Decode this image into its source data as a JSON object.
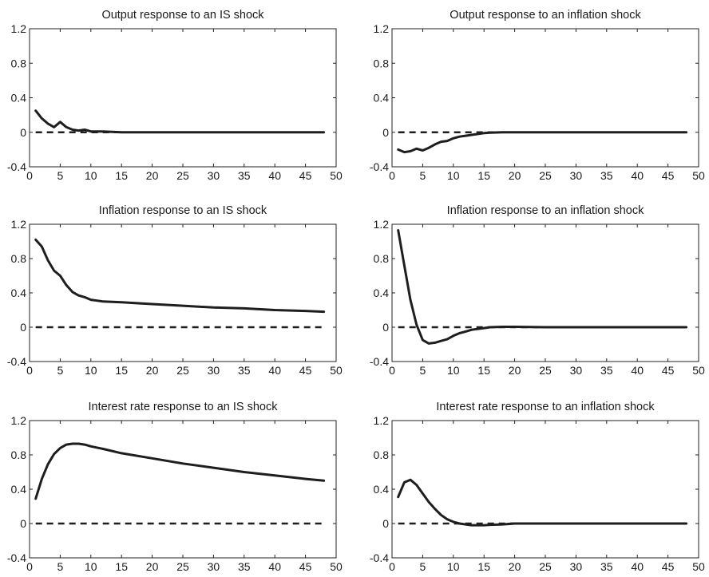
{
  "chart_data": [
    {
      "type": "line",
      "title": "Output response to an IS shock",
      "xlim": [
        0,
        50
      ],
      "ylim": [
        -0.4,
        1.2
      ],
      "xticks": [
        0,
        5,
        10,
        15,
        20,
        25,
        30,
        35,
        40,
        45,
        50
      ],
      "yticks": [
        -0.4,
        0,
        0.4,
        0.8,
        1.2
      ],
      "ytick_labels": [
        "-0.4",
        "0",
        "0.4",
        "0.8",
        "1.2"
      ],
      "x": [
        1,
        2,
        3,
        4,
        5,
        6,
        7,
        8,
        9,
        10,
        12,
        15,
        20,
        30,
        40,
        48
      ],
      "series": [
        {
          "values": [
            0.25,
            0.16,
            0.1,
            0.06,
            0.12,
            0.06,
            0.03,
            0.02,
            0.03,
            0.01,
            0.01,
            0.0,
            0.0,
            0.0,
            0.0,
            0.0
          ]
        }
      ],
      "zero_line": true
    },
    {
      "type": "line",
      "title": "Output response to an inflation shock",
      "xlim": [
        0,
        50
      ],
      "ylim": [
        -0.4,
        1.2
      ],
      "xticks": [
        0,
        5,
        10,
        15,
        20,
        25,
        30,
        35,
        40,
        45,
        50
      ],
      "yticks": [
        -0.4,
        0,
        0.4,
        0.8,
        1.2
      ],
      "ytick_labels": [
        "-0.4",
        "0",
        "0.4",
        "0.8",
        "1.2"
      ],
      "x": [
        1,
        2,
        3,
        4,
        5,
        6,
        7,
        8,
        9,
        10,
        11,
        12,
        13,
        14,
        15,
        16,
        18,
        20,
        25,
        30,
        40,
        48
      ],
      "series": [
        {
          "values": [
            -0.2,
            -0.23,
            -0.22,
            -0.19,
            -0.21,
            -0.18,
            -0.14,
            -0.11,
            -0.1,
            -0.07,
            -0.05,
            -0.04,
            -0.03,
            -0.02,
            -0.01,
            -0.005,
            0.0,
            0.0,
            0.0,
            0.0,
            0.0,
            0.0
          ]
        }
      ],
      "zero_line": true
    },
    {
      "type": "line",
      "title": "Inflation response to an IS shock",
      "xlim": [
        0,
        50
      ],
      "ylim": [
        -0.4,
        1.2
      ],
      "xticks": [
        0,
        5,
        10,
        15,
        20,
        25,
        30,
        35,
        40,
        45,
        50
      ],
      "yticks": [
        -0.4,
        0,
        0.4,
        0.8,
        1.2
      ],
      "ytick_labels": [
        "-0.4",
        "0",
        "0.4",
        "0.8",
        "1.2"
      ],
      "x": [
        1,
        2,
        3,
        4,
        5,
        6,
        7,
        8,
        9,
        10,
        11,
        12,
        15,
        20,
        25,
        30,
        35,
        40,
        45,
        48
      ],
      "series": [
        {
          "values": [
            1.02,
            0.94,
            0.78,
            0.66,
            0.6,
            0.49,
            0.41,
            0.37,
            0.35,
            0.32,
            0.31,
            0.3,
            0.29,
            0.27,
            0.25,
            0.23,
            0.22,
            0.2,
            0.19,
            0.18
          ]
        }
      ],
      "zero_line": true
    },
    {
      "type": "line",
      "title": "Inflation response to an inflation shock",
      "xlim": [
        0,
        50
      ],
      "ylim": [
        -0.4,
        1.2
      ],
      "xticks": [
        0,
        5,
        10,
        15,
        20,
        25,
        30,
        35,
        40,
        45,
        50
      ],
      "yticks": [
        -0.4,
        0,
        0.4,
        0.8,
        1.2
      ],
      "ytick_labels": [
        "-0.4",
        "0",
        "0.4",
        "0.8",
        "1.2"
      ],
      "x": [
        1,
        2,
        3,
        4,
        5,
        6,
        7,
        8,
        9,
        10,
        11,
        12,
        13,
        14,
        15,
        16,
        18,
        20,
        25,
        30,
        40,
        48
      ],
      "series": [
        {
          "values": [
            1.13,
            0.72,
            0.32,
            0.03,
            -0.15,
            -0.19,
            -0.18,
            -0.16,
            -0.14,
            -0.1,
            -0.07,
            -0.05,
            -0.03,
            -0.02,
            -0.01,
            0.0,
            0.005,
            0.005,
            0.0,
            0.0,
            0.0,
            0.0
          ]
        }
      ],
      "zero_line": true
    },
    {
      "type": "line",
      "title": "Interest rate response to an IS shock",
      "xlim": [
        0,
        50
      ],
      "ylim": [
        -0.4,
        1.2
      ],
      "xticks": [
        0,
        5,
        10,
        15,
        20,
        25,
        30,
        35,
        40,
        45,
        50
      ],
      "yticks": [
        -0.4,
        0,
        0.4,
        0.8,
        1.2
      ],
      "ytick_labels": [
        "-0.4",
        "0",
        "0.4",
        "0.8",
        "1.2"
      ],
      "x": [
        1,
        2,
        3,
        4,
        5,
        6,
        7,
        8,
        9,
        10,
        12,
        15,
        20,
        25,
        30,
        35,
        40,
        45,
        48
      ],
      "series": [
        {
          "values": [
            0.29,
            0.52,
            0.69,
            0.81,
            0.88,
            0.92,
            0.93,
            0.93,
            0.92,
            0.9,
            0.87,
            0.82,
            0.76,
            0.7,
            0.65,
            0.6,
            0.56,
            0.52,
            0.5
          ]
        }
      ],
      "zero_line": true
    },
    {
      "type": "line",
      "title": "Interest rate response to an inflation shock",
      "xlim": [
        0,
        50
      ],
      "ylim": [
        -0.4,
        1.2
      ],
      "xticks": [
        0,
        5,
        10,
        15,
        20,
        25,
        30,
        35,
        40,
        45,
        50
      ],
      "yticks": [
        -0.4,
        0,
        0.4,
        0.8,
        1.2
      ],
      "ytick_labels": [
        "-0.4",
        "0",
        "0.4",
        "0.8",
        "1.2"
      ],
      "x": [
        1,
        2,
        3,
        4,
        5,
        6,
        7,
        8,
        9,
        10,
        11,
        12,
        13,
        14,
        15,
        16,
        18,
        20,
        25,
        30,
        40,
        48
      ],
      "series": [
        {
          "values": [
            0.31,
            0.48,
            0.51,
            0.45,
            0.35,
            0.25,
            0.17,
            0.1,
            0.05,
            0.02,
            0.0,
            -0.01,
            -0.02,
            -0.02,
            -0.02,
            -0.015,
            -0.01,
            0.0,
            0.0,
            0.0,
            0.0,
            0.0
          ]
        }
      ],
      "zero_line": true
    }
  ]
}
